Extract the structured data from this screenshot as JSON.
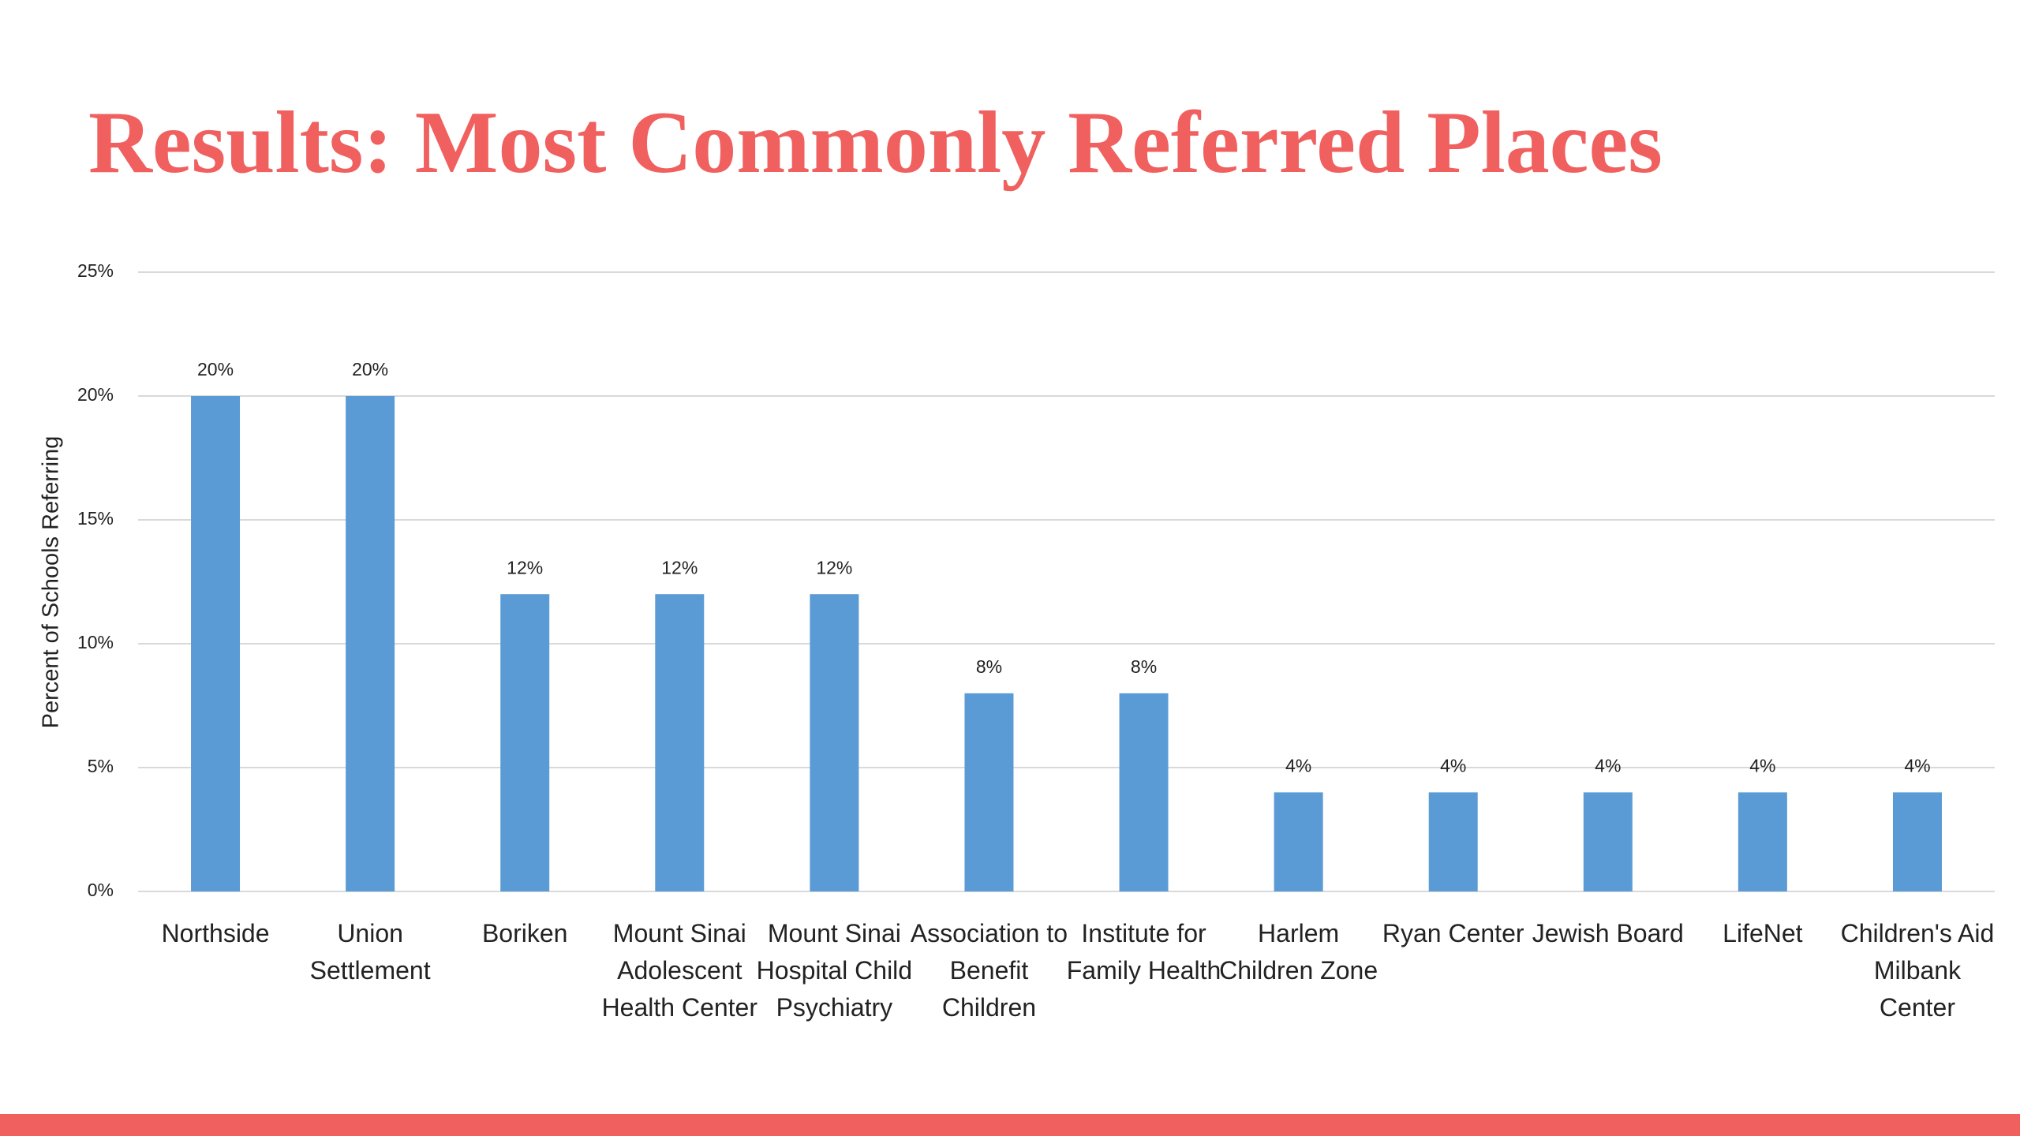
{
  "chart_data": {
    "type": "bar",
    "title": "Results: Most Commonly Referred Places",
    "y_label": "Percent of Schools Referring",
    "categories": [
      "Northside",
      "Union Settlement",
      "Boriken",
      "Mount Sinai Adolescent Health Center",
      "Mount Sinai Hospital Child Psychiatry",
      "Association to Benefit Children",
      "Institute for Family Health",
      "Harlem Children Zone",
      "Ryan Center",
      "Jewish Board",
      "LifeNet",
      "Children's Aid Milbank Center"
    ],
    "values": [
      20,
      20,
      12,
      12,
      12,
      8,
      8,
      4,
      4,
      4,
      4,
      4
    ],
    "value_labels": [
      "20%",
      "20%",
      "12%",
      "12%",
      "12%",
      "8%",
      "8%",
      "4%",
      "4%",
      "4%",
      "4%",
      "4%"
    ],
    "color": "#5b9bd5",
    "ylim": [
      0,
      25
    ],
    "yticks": [
      {
        "value": 0,
        "label": "0%"
      },
      {
        "value": 5,
        "label": "5%"
      },
      {
        "value": 10,
        "label": "10%"
      },
      {
        "value": 15,
        "label": "15%"
      },
      {
        "value": 20,
        "label": "20%"
      },
      {
        "value": 25,
        "label": "25%"
      }
    ],
    "grid": true
  }
}
